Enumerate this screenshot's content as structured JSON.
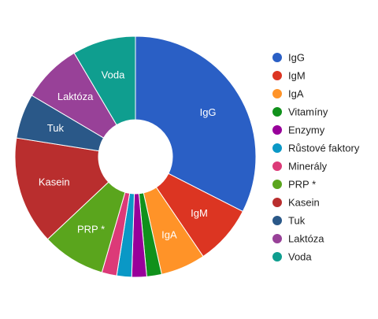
{
  "chart_data": {
    "type": "pie",
    "donut": true,
    "legend_position": "right",
    "slices": [
      {
        "label": "IgG",
        "value": 32.5,
        "color": "#2a5fc5",
        "show_label": true
      },
      {
        "label": "IgM",
        "value": 8.0,
        "color": "#dc3522",
        "show_label": true
      },
      {
        "label": "IgA",
        "value": 6.0,
        "color": "#ff9328",
        "show_label": true
      },
      {
        "label": "Vitamíny",
        "value": 2.0,
        "color": "#10911b",
        "show_label": false
      },
      {
        "label": "Enzymy",
        "value": 2.0,
        "color": "#98009a",
        "show_label": false
      },
      {
        "label": "Růstové faktory",
        "value": 2.0,
        "color": "#0a98c6",
        "show_label": false
      },
      {
        "label": "Minerály",
        "value": 2.0,
        "color": "#dc3a78",
        "show_label": false
      },
      {
        "label": "PRP *",
        "value": 8.5,
        "color": "#5aa51d",
        "show_label": true
      },
      {
        "label": "Kasein",
        "value": 14.5,
        "color": "#b92e2e",
        "show_label": true
      },
      {
        "label": "Tuk",
        "value": 6.0,
        "color": "#2a5888",
        "show_label": true
      },
      {
        "label": "Laktóza",
        "value": 8.0,
        "color": "#984198",
        "show_label": true
      },
      {
        "label": "Voda",
        "value": 8.5,
        "color": "#0f9e8f",
        "show_label": true
      }
    ]
  }
}
